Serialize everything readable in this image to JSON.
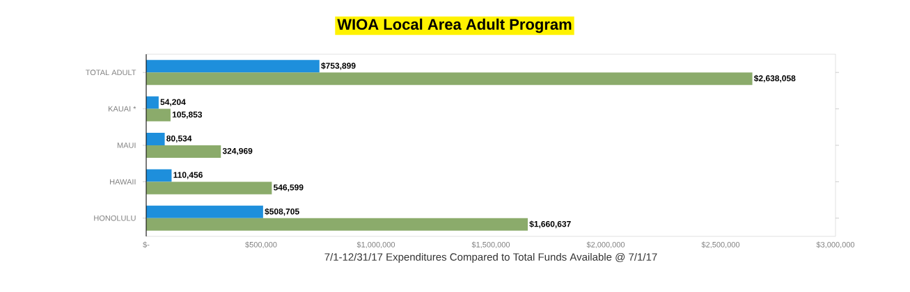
{
  "chart_data": {
    "type": "bar",
    "orientation": "horizontal",
    "title": "WIOA Local Area Adult Program",
    "xlabel": "7/1-12/31/17 Expenditures Compared to Total Funds Available @ 7/1/17",
    "categories": [
      "TOTAL ADULT",
      "KAUAI *",
      "MAUI",
      "HAWAII",
      "HONOLULU"
    ],
    "series": [
      {
        "color": "#1e8fdc",
        "values": [
          753899,
          54204,
          80534,
          110456,
          508705
        ],
        "value_labels": [
          "$753,899",
          "54,204",
          "80,534",
          "110,456",
          "$508,705"
        ]
      },
      {
        "color": "#8bab6b",
        "values": [
          2638058,
          105853,
          324969,
          546599,
          1660637
        ],
        "value_labels": [
          "$2,638,058",
          "105,853",
          "324,969",
          "546,599",
          "$1,660,637"
        ]
      }
    ],
    "xlim": [
      0,
      3000000
    ],
    "xticks": [
      {
        "value": 0,
        "label": "$-"
      },
      {
        "value": 500000,
        "label": "$500,000"
      },
      {
        "value": 1000000,
        "label": "$1,000,000"
      },
      {
        "value": 1500000,
        "label": "$1,500,000"
      },
      {
        "value": 2000000,
        "label": "$2,000,000"
      },
      {
        "value": 2500000,
        "label": "$2,500,000"
      },
      {
        "value": 3000000,
        "label": "$3,000,000"
      }
    ],
    "grid": false
  }
}
